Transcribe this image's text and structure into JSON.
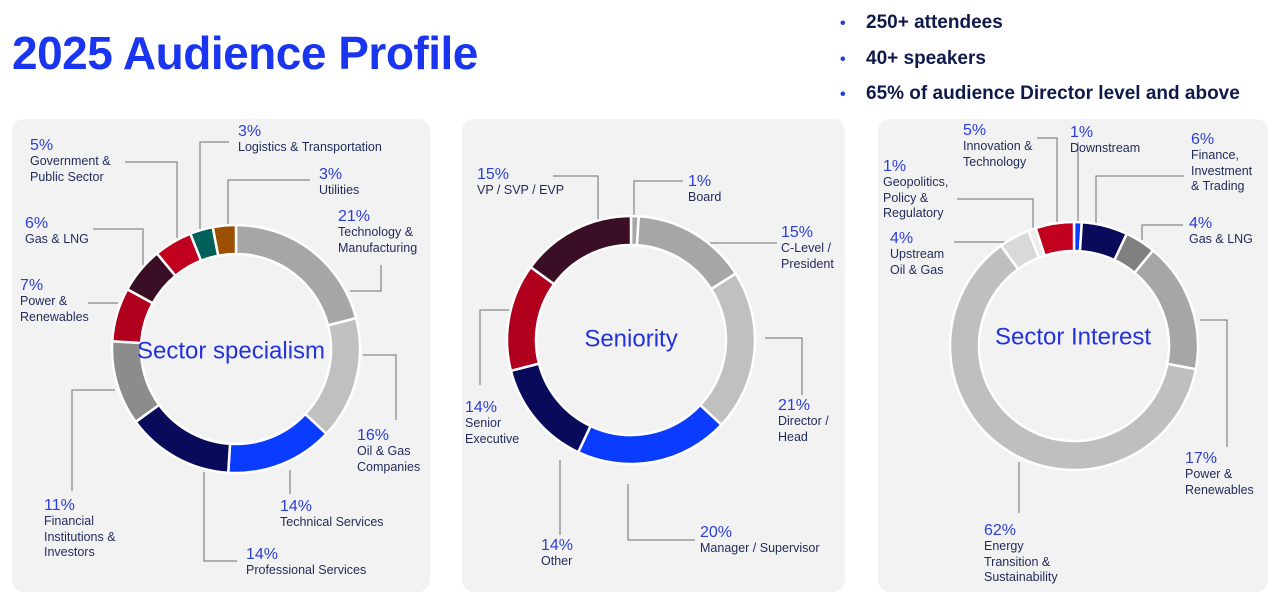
{
  "title": "2025 Audience Profile",
  "bullets": [
    "250+ attendees",
    "40+ speakers",
    "65% of audience Director level and above"
  ],
  "chart_data": [
    {
      "type": "pie",
      "title": "Sector specialism",
      "slices": [
        {
          "pct": "21%",
          "label": "Technology &\nManufacturing",
          "value": 21,
          "color": "#a6a6a6"
        },
        {
          "pct": "16%",
          "label": "Oil & Gas\nCompanies",
          "value": 16,
          "color": "#c0c0c0"
        },
        {
          "pct": "14%",
          "label": "Technical Services",
          "value": 14,
          "color": "#0a3cff"
        },
        {
          "pct": "14%",
          "label": "Professional Services",
          "value": 14,
          "color": "#0a0a5a"
        },
        {
          "pct": "11%",
          "label": "Financial\nInstitutions &\nInvestors",
          "value": 11,
          "color": "#8c8c8c"
        },
        {
          "pct": "7%",
          "label": "Power &\nRenewables",
          "value": 7,
          "color": "#b0001e"
        },
        {
          "pct": "6%",
          "label": "Gas & LNG",
          "value": 6,
          "color": "#3a0f25"
        },
        {
          "pct": "5%",
          "label": "Government &\nPublic Sector",
          "value": 5,
          "color": "#c0001e"
        },
        {
          "pct": "3%",
          "label": "Logistics & Transportation",
          "value": 3,
          "color": "#00605a"
        },
        {
          "pct": "3%",
          "label": "Utilities",
          "value": 3,
          "color": "#9a5000"
        }
      ]
    },
    {
      "type": "pie",
      "title": "Seniority",
      "slices": [
        {
          "pct": "1%",
          "label": "Board",
          "value": 1,
          "color": "#a6a6a6"
        },
        {
          "pct": "15%",
          "label": "C-Level /\nPresident",
          "value": 15,
          "color": "#a6a6a6"
        },
        {
          "pct": "21%",
          "label": "Director /\nHead",
          "value": 21,
          "color": "#c0c0c0"
        },
        {
          "pct": "20%",
          "label": "Manager / Supervisor",
          "value": 20,
          "color": "#0a3cff"
        },
        {
          "pct": "14%",
          "label": "Other",
          "value": 14,
          "color": "#0a0a5a"
        },
        {
          "pct": "14%",
          "label": "Senior\nExecutive",
          "value": 14,
          "color": "#b0001e"
        },
        {
          "pct": "15%",
          "label": "VP / SVP / EVP",
          "value": 15,
          "color": "#3a0f25"
        }
      ]
    },
    {
      "type": "pie",
      "title": "Sector Interest",
      "slices": [
        {
          "pct": "1%",
          "label": "Downstream",
          "value": 1,
          "color": "#0a3cff"
        },
        {
          "pct": "6%",
          "label": "Finance,\nInvestment\n& Trading",
          "value": 6,
          "color": "#0a0a5a"
        },
        {
          "pct": "4%",
          "label": "Gas & LNG",
          "value": 4,
          "color": "#7f7f7f"
        },
        {
          "pct": "17%",
          "label": "Power &\nRenewables",
          "value": 17,
          "color": "#a6a6a6"
        },
        {
          "pct": "62%",
          "label": "Energy\nTransition &\nSustainability",
          "value": 62,
          "color": "#bfbfbf"
        },
        {
          "pct": "4%",
          "label": "Upstream\nOil & Gas",
          "value": 4,
          "color": "#d9d9d9"
        },
        {
          "pct": "1%",
          "label": "Geopolitics,\nPolicy &\nRegulatory",
          "value": 1,
          "color": "#ececec"
        },
        {
          "pct": "5%",
          "label": "Innovation &\nTechnology",
          "value": 5,
          "color": "#c0001e"
        }
      ]
    }
  ]
}
